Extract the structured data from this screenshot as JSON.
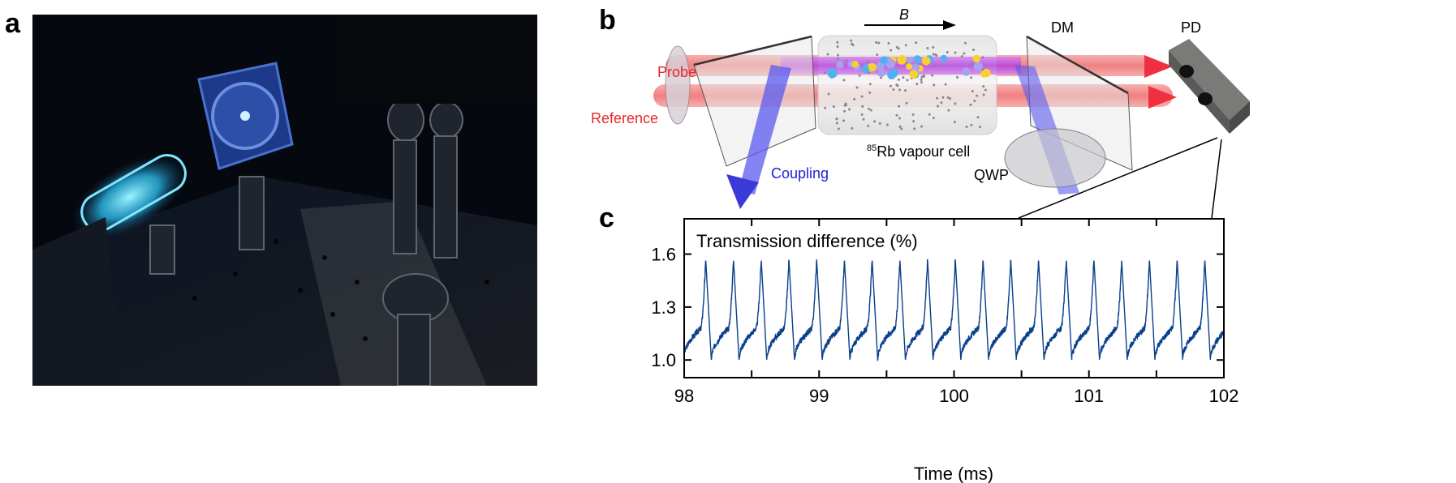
{
  "panels": {
    "a": {
      "label": "a"
    },
    "b": {
      "label": "b",
      "probe": "Probe",
      "reference": "Reference",
      "coupling": "Coupling",
      "field": "B",
      "cell_isotope": "85",
      "cell": "Rb vapour cell",
      "dm": "DM",
      "qwp": "QWP",
      "pd": "PD",
      "colors": {
        "probe": "#e8262c",
        "coupling": "#2020d0",
        "beam_red": "#f07070",
        "beam_blue": "#5a5af0"
      }
    },
    "c": {
      "label": "c"
    }
  },
  "chart_data": {
    "type": "line",
    "title": "Transmission difference (%)",
    "xlabel": "Time (ms)",
    "ylabel": "",
    "xlim": [
      98,
      102
    ],
    "ylim": [
      0.9,
      1.8
    ],
    "xticks": [
      "98",
      "99",
      "100",
      "101",
      "102"
    ],
    "yticks": [
      "1.0",
      "1.3",
      "1.6"
    ],
    "grid": false,
    "line_color": "#0a3f8c",
    "series": [
      {
        "waveform": "periodic sawtooth-like",
        "period_ms": 0.2055,
        "first_peak_ms": 98.16,
        "peak_value": 1.57,
        "trough_value": 1.0,
        "shoulder_value": 1.16
      }
    ]
  }
}
